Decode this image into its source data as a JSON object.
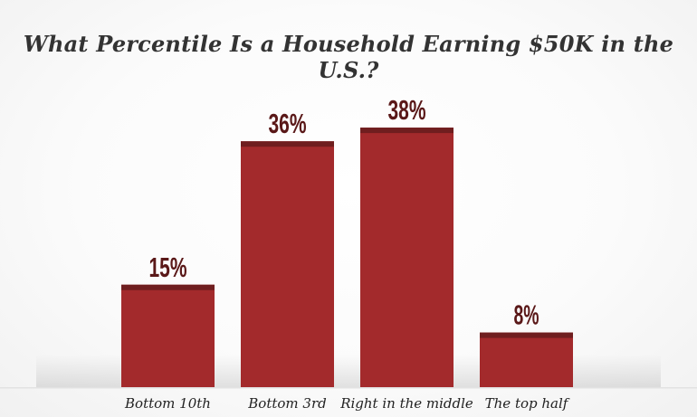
{
  "chart_data": {
    "type": "bar",
    "title": "What Percentile Is a Household Earning $50K in the U.S.?",
    "categories": [
      "Bottom 10th",
      "Bottom 3rd",
      "Right in the middle",
      "The top half"
    ],
    "values": [
      15,
      36,
      38,
      8
    ],
    "value_labels": [
      "15%",
      "36%",
      "38%",
      "8%"
    ],
    "ylim": [
      0,
      40
    ],
    "grid": false,
    "legend": "none",
    "colors": {
      "bar": "#a32a2c",
      "bar_top": "#6f1e1f",
      "value_text": "#5a1818"
    }
  }
}
